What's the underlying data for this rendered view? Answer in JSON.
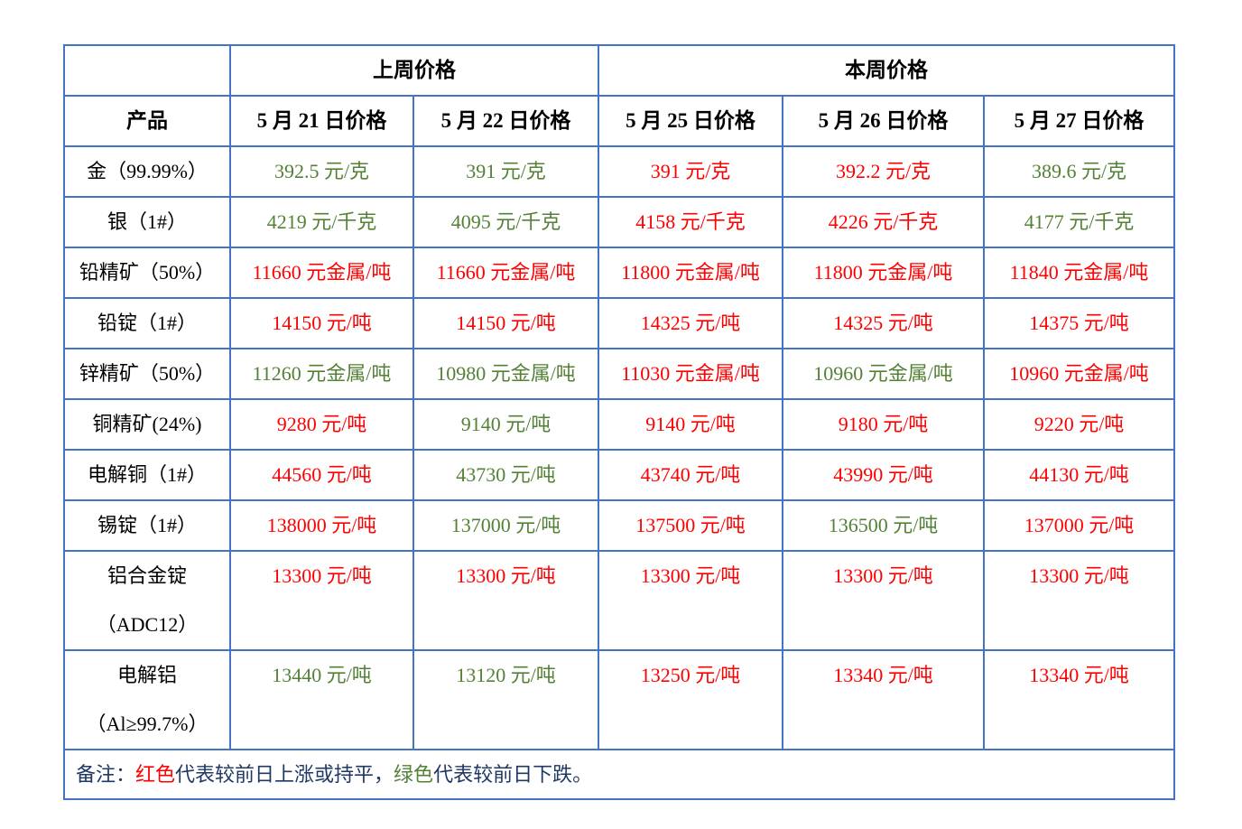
{
  "colors": {
    "red": "#ff0000",
    "green": "#538135",
    "border": "#4472c4",
    "header_text": "#000000",
    "note_text": "#1f3864"
  },
  "table": {
    "group_headers": [
      {
        "label": "",
        "span": 1
      },
      {
        "label": "上周价格",
        "span": 2
      },
      {
        "label": "本周价格",
        "span": 3
      }
    ],
    "column_headers": [
      "产品",
      "5 月 21 日价格",
      "5 月 22 日价格",
      "5 月 25 日价格",
      "5 月 26 日价格",
      "5 月 27 日价格"
    ],
    "rows": [
      {
        "product": "金（99.99%）",
        "tall": false,
        "values": [
          {
            "text": "392.5 元/克",
            "trend": "green"
          },
          {
            "text": "391 元/克",
            "trend": "green"
          },
          {
            "text": "391 元/克",
            "trend": "red"
          },
          {
            "text": "392.2 元/克",
            "trend": "red"
          },
          {
            "text": "389.6 元/克",
            "trend": "green"
          }
        ]
      },
      {
        "product": "银（1#）",
        "tall": false,
        "values": [
          {
            "text": "4219 元/千克",
            "trend": "green"
          },
          {
            "text": "4095 元/千克",
            "trend": "green"
          },
          {
            "text": "4158 元/千克",
            "trend": "red"
          },
          {
            "text": "4226 元/千克",
            "trend": "red"
          },
          {
            "text": "4177 元/千克",
            "trend": "green"
          }
        ]
      },
      {
        "product": "铅精矿（50%）",
        "tall": false,
        "values": [
          {
            "text": "11660 元金属/吨",
            "trend": "red"
          },
          {
            "text": "11660 元金属/吨",
            "trend": "red"
          },
          {
            "text": "11800 元金属/吨",
            "trend": "red"
          },
          {
            "text": "11800 元金属/吨",
            "trend": "red"
          },
          {
            "text": "11840 元金属/吨",
            "trend": "red"
          }
        ]
      },
      {
        "product": "铅锭（1#）",
        "tall": false,
        "values": [
          {
            "text": "14150 元/吨",
            "trend": "red"
          },
          {
            "text": "14150 元/吨",
            "trend": "red"
          },
          {
            "text": "14325 元/吨",
            "trend": "red"
          },
          {
            "text": "14325 元/吨",
            "trend": "red"
          },
          {
            "text": "14375 元/吨",
            "trend": "red"
          }
        ]
      },
      {
        "product": "锌精矿（50%）",
        "tall": false,
        "values": [
          {
            "text": "11260 元金属/吨",
            "trend": "green"
          },
          {
            "text": "10980 元金属/吨",
            "trend": "green"
          },
          {
            "text": "11030 元金属/吨",
            "trend": "red"
          },
          {
            "text": "10960 元金属/吨",
            "trend": "green"
          },
          {
            "text": "10960 元金属/吨",
            "trend": "red"
          }
        ]
      },
      {
        "product": "铜精矿(24%)",
        "tall": false,
        "values": [
          {
            "text": "9280 元/吨",
            "trend": "red"
          },
          {
            "text": "9140 元/吨",
            "trend": "green"
          },
          {
            "text": "9140 元/吨",
            "trend": "red"
          },
          {
            "text": "9180 元/吨",
            "trend": "red"
          },
          {
            "text": "9220 元/吨",
            "trend": "red"
          }
        ]
      },
      {
        "product": "电解铜（1#）",
        "tall": false,
        "values": [
          {
            "text": "44560 元/吨",
            "trend": "red"
          },
          {
            "text": "43730 元/吨",
            "trend": "green"
          },
          {
            "text": "43740 元/吨",
            "trend": "red"
          },
          {
            "text": "43990 元/吨",
            "trend": "red"
          },
          {
            "text": "44130 元/吨",
            "trend": "red"
          }
        ]
      },
      {
        "product": "锡锭（1#）",
        "tall": false,
        "values": [
          {
            "text": "138000 元/吨",
            "trend": "red"
          },
          {
            "text": "137000 元/吨",
            "trend": "green"
          },
          {
            "text": "137500 元/吨",
            "trend": "red"
          },
          {
            "text": "136500 元/吨",
            "trend": "green"
          },
          {
            "text": "137000 元/吨",
            "trend": "red"
          }
        ]
      },
      {
        "product": "铝合金锭（ADC12）",
        "tall": true,
        "values": [
          {
            "text": "13300 元/吨",
            "trend": "red"
          },
          {
            "text": "13300 元/吨",
            "trend": "red"
          },
          {
            "text": "13300 元/吨",
            "trend": "red"
          },
          {
            "text": "13300 元/吨",
            "trend": "red"
          },
          {
            "text": "13300 元/吨",
            "trend": "red"
          }
        ]
      },
      {
        "product": "电解铝（Al≥99.7%）",
        "tall": true,
        "values": [
          {
            "text": "13440 元/吨",
            "trend": "green"
          },
          {
            "text": "13120 元/吨",
            "trend": "green"
          },
          {
            "text": "13250 元/吨",
            "trend": "red"
          },
          {
            "text": "13340 元/吨",
            "trend": "red"
          },
          {
            "text": "13340 元/吨",
            "trend": "red"
          }
        ]
      }
    ],
    "note": {
      "segments": [
        {
          "text": "备注：",
          "color": "note"
        },
        {
          "text": "红色",
          "color": "red"
        },
        {
          "text": "代表较前日上涨或持平，",
          "color": "note"
        },
        {
          "text": "绿色",
          "color": "green"
        },
        {
          "text": "代表较前日下跌。",
          "color": "note"
        }
      ]
    }
  }
}
